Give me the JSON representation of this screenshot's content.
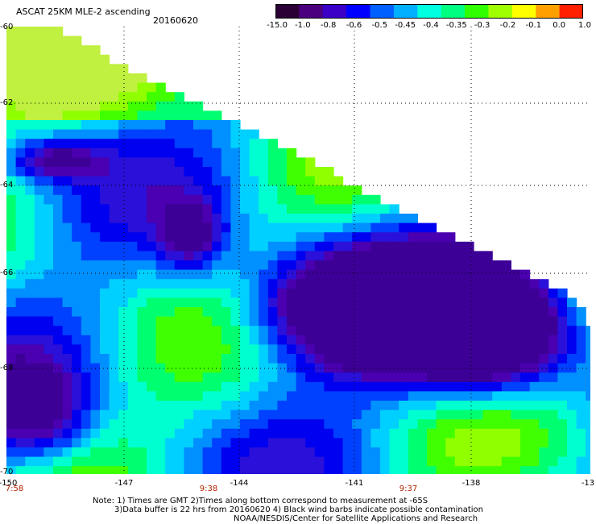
{
  "header": {
    "title": "ASCAT 25KM MLE-2 ascending",
    "date": "20160620"
  },
  "colorbar": {
    "labels": [
      "-15.0",
      "-1.0",
      "-0.8",
      "-0.6",
      "-0.5",
      "-0.45",
      "-0.4",
      "-0.35",
      "-0.3",
      "-0.2",
      "-0.1",
      "0.0",
      "1.0"
    ],
    "colors": [
      "#2b0035",
      "#4b0080",
      "#3a00c8",
      "#0000ff",
      "#0060ff",
      "#00b0ff",
      "#00ffe0",
      "#00ff80",
      "#30ff00",
      "#a0ff00",
      "#ffff00",
      "#ffa000",
      "#ff2000"
    ]
  },
  "chart_data": {
    "type": "heatmap",
    "title": "ASCAT 25KM MLE-2 ascending",
    "x_ticks": [
      "-150",
      "-147",
      "-144",
      "-141",
      "-138",
      "-13"
    ],
    "y_ticks": [
      "-60",
      "-62",
      "-64",
      "-66",
      "-68",
      "-70"
    ],
    "xlim": [
      -150,
      -135
    ],
    "ylim": [
      -70,
      -60
    ],
    "grid": true,
    "colorbar_range": [
      -15.0,
      1.0
    ]
  },
  "time_labels": [
    "7:58",
    "9:38",
    "9:37"
  ],
  "notes": [
    "Note: 1) Times are GMT 2)Times along bottom correspond to measurement at -65S",
    "3)Data buffer is 22 hrs from 20160620 4) Black wind barbs indicate possible contamination",
    "NOAA/NESDIS/Center for Satellite Applications and Research"
  ]
}
